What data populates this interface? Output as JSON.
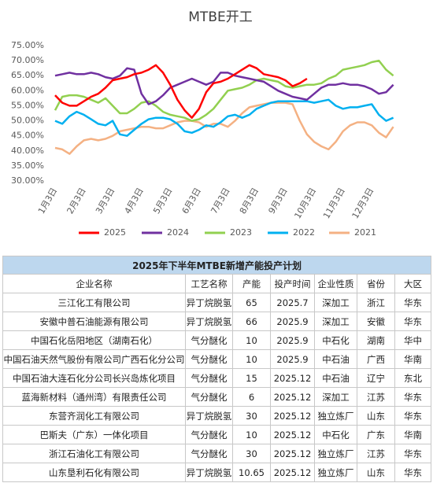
{
  "chart_data": {
    "type": "line",
    "title": "MTBE开工",
    "categories": [
      "1月3日",
      null,
      null,
      null,
      "2月3日",
      null,
      null,
      null,
      "3月3日",
      null,
      null,
      null,
      "4月3日",
      null,
      null,
      null,
      "5月3日",
      null,
      null,
      null,
      "6月3日",
      null,
      null,
      null,
      "7月3日",
      null,
      null,
      null,
      "8月3日",
      null,
      null,
      null,
      "9月3日",
      null,
      null,
      null,
      "10月3日",
      null,
      null,
      null,
      "11月3日",
      null,
      null,
      null,
      "12月3日",
      null,
      null,
      null
    ],
    "series": [
      {
        "name": "2025",
        "color": "#ff0000",
        "values": [
          58.5,
          56,
          55,
          55,
          56.5,
          58,
          59,
          61,
          63.5,
          64,
          64.5,
          65.5,
          66,
          67,
          68.5,
          66,
          62,
          57,
          53.5,
          51,
          54,
          59.5,
          62.5,
          63,
          64,
          65.5,
          67,
          68.5,
          67.5,
          65.5,
          65,
          64.5,
          63.5,
          61.5,
          62.5,
          64,
          null,
          null,
          null,
          null,
          null,
          null,
          null,
          null,
          null,
          null,
          null,
          null
        ]
      },
      {
        "name": "2024",
        "color": "#7030a0",
        "values": [
          65,
          65.5,
          66,
          65.5,
          65.5,
          66,
          65.5,
          64.5,
          64,
          65,
          67.5,
          67,
          59,
          55.5,
          56.5,
          58.5,
          61,
          62,
          63,
          64,
          63,
          62,
          63,
          66,
          66,
          65,
          64.5,
          64,
          63.5,
          63,
          61.5,
          60,
          59,
          58,
          57.5,
          57,
          59,
          61,
          62,
          62,
          62.5,
          62,
          62,
          61.5,
          60.5,
          59,
          59.5,
          62
        ]
      },
      {
        "name": "2023",
        "color": "#92d050",
        "values": [
          53.5,
          58,
          58.5,
          58.5,
          58,
          57,
          56,
          57.5,
          55,
          52.5,
          52.5,
          54,
          56,
          56.5,
          55,
          53,
          52,
          51.5,
          51,
          50,
          50.5,
          52,
          54,
          57,
          60,
          60.5,
          61,
          62,
          63.5,
          64,
          63.5,
          63,
          61.5,
          61,
          61.5,
          62,
          62,
          62.5,
          64,
          65,
          67,
          67.5,
          68,
          68.5,
          69.5,
          70,
          67,
          65
        ]
      },
      {
        "name": "2022",
        "color": "#00b0f0",
        "values": [
          50,
          49,
          51.5,
          53,
          52,
          50.5,
          49,
          48.5,
          50,
          45.5,
          45,
          47,
          49,
          50.5,
          51,
          51,
          50.5,
          49,
          46.5,
          46,
          47,
          48.5,
          48,
          49.5,
          51.5,
          52,
          51,
          52,
          54,
          55,
          56,
          56.5,
          56.5,
          56.5,
          56.5,
          56.5,
          56,
          56.5,
          57,
          55,
          54,
          54.5,
          54.5,
          55,
          55.5,
          52,
          50,
          51
        ]
      },
      {
        "name": "2021",
        "color": "#f4b183",
        "values": [
          41,
          40.5,
          39,
          41.5,
          43.5,
          44,
          43.5,
          44,
          45,
          46.5,
          47,
          47.5,
          48,
          48,
          47.5,
          47.5,
          48.5,
          49.5,
          50,
          50,
          49.5,
          48,
          49,
          49,
          48,
          50,
          52.5,
          54.5,
          55,
          55.5,
          56,
          56,
          56,
          55.5,
          50,
          45.5,
          43,
          41.5,
          40.5,
          43,
          46.5,
          48.5,
          49.5,
          49.5,
          48.5,
          46,
          44.5,
          48
        ]
      }
    ],
    "ylim": [
      30,
      75
    ],
    "yticks": [
      {
        "value": 30,
        "label": "30.00%"
      },
      {
        "value": 35,
        "label": "35.00%"
      },
      {
        "value": 40,
        "label": "40.00%"
      },
      {
        "value": 45,
        "label": "45.00%"
      },
      {
        "value": 50,
        "label": "50.00%"
      },
      {
        "value": 55,
        "label": "55.00%"
      },
      {
        "value": 60,
        "label": "60.00%"
      },
      {
        "value": 65,
        "label": "65.00%"
      },
      {
        "value": 70,
        "label": "70.00%"
      },
      {
        "value": 75,
        "label": "75.00%"
      }
    ],
    "grid": false,
    "legend": "bottom"
  },
  "table": {
    "title": "2025年下半年MTBE新增产能投产计划",
    "columns": [
      "企业名称",
      "工艺名称",
      "产能",
      "投产时间",
      "企业性质",
      "省份",
      "大区"
    ],
    "rows": [
      [
        "三江化工有限公司",
        "异丁烷脱氢",
        "65",
        "2025.7",
        "深加工",
        "浙江",
        "华东"
      ],
      [
        "安徽中普石油能源有限公司",
        "异丁烷脱氢",
        "66",
        "2025.9",
        "深加工",
        "安徽",
        "华东"
      ],
      [
        "中国石化岳阳地区（湖南石化）",
        "气分醚化",
        "10",
        "2025.9",
        "中石化",
        "湖南",
        "华中"
      ],
      [
        "中国石油天然气股份有限公司广西石化分公司",
        "气分醚化",
        "10",
        "2025.9",
        "中石油",
        "广西",
        "华南"
      ],
      [
        "中国石油大连石化分公司长兴岛炼化项目",
        "气分醚化",
        "15",
        "2025.12",
        "中石油",
        "辽宁",
        "东北"
      ],
      [
        "蓝海新材料（通州湾）有限责任公司",
        "气分醚化",
        "6",
        "2025.12",
        "深加工",
        "江苏",
        "华东"
      ],
      [
        "东营齐润化工有限公司",
        "异丁烷脱氢",
        "30",
        "2025.12",
        "独立炼厂",
        "山东",
        "华东"
      ],
      [
        "巴斯夫（广东）一体化项目",
        "气分醚化",
        "10",
        "2025.12",
        "中石化",
        "广东",
        "华南"
      ],
      [
        "浙江石油化工有限公司",
        "气分醚化",
        "30",
        "2025.12",
        "独立炼厂",
        "江苏",
        "华东"
      ],
      [
        "山东垦利石化有限公司",
        "异丁烷脱氢",
        "10.65",
        "2025.12",
        "独立炼厂",
        "山东",
        "华东"
      ]
    ]
  }
}
